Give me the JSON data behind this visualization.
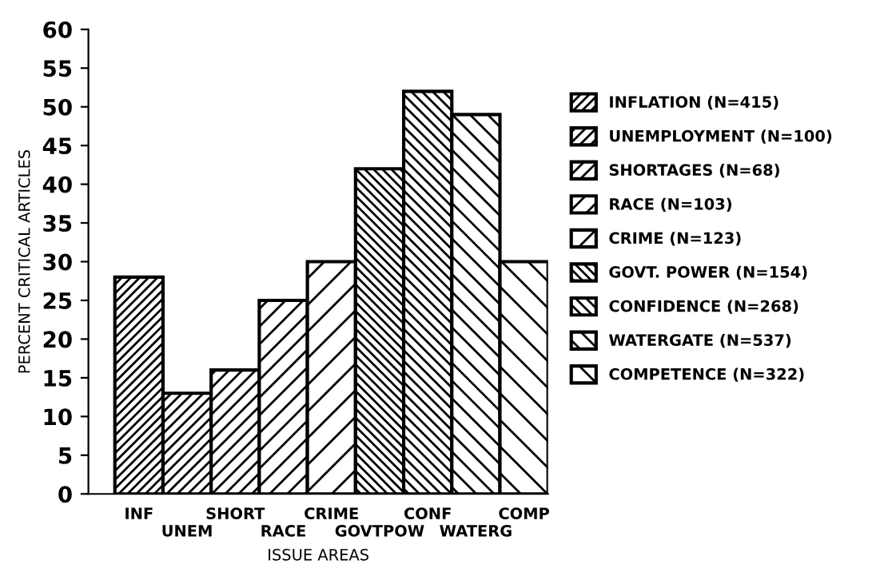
{
  "chart_data": {
    "type": "bar",
    "xlabel": "ISSUE AREAS",
    "ylabel": "PERCENT CRITICAL ARTICLES",
    "categories": [
      "INF",
      "UNEM",
      "SHORT",
      "RACE",
      "CRIME",
      "GOVTPOW",
      "CONF",
      "WATERG",
      "COMP"
    ],
    "series": [
      {
        "name": "INFLATION (N=415)",
        "color": "#000000",
        "values": [
          28,
          null,
          null,
          null,
          null,
          null,
          null,
          null,
          null
        ]
      },
      {
        "name": "UNEMPLOYMENT (N=100)",
        "color": "#000000",
        "values": [
          null,
          13,
          null,
          null,
          null,
          null,
          null,
          null,
          null
        ]
      },
      {
        "name": "SHORTAGES (N=68)",
        "color": "#000000",
        "values": [
          null,
          null,
          16,
          null,
          null,
          null,
          null,
          null,
          null
        ]
      },
      {
        "name": "RACE (N=103)",
        "color": "#000000",
        "values": [
          null,
          null,
          null,
          25,
          null,
          null,
          null,
          null,
          null
        ]
      },
      {
        "name": "CRIME (N=123)",
        "color": "#000000",
        "values": [
          null,
          null,
          null,
          null,
          30,
          null,
          null,
          null,
          null
        ]
      },
      {
        "name": "GOVT. POWER (N=154)",
        "color": "#000000",
        "values": [
          null,
          null,
          null,
          null,
          null,
          42,
          null,
          null,
          null
        ]
      },
      {
        "name": "CONFIDENCE (N=268)",
        "color": "#000000",
        "values": [
          null,
          null,
          null,
          null,
          null,
          null,
          52,
          null,
          null
        ]
      },
      {
        "name": "WATERGATE (N=537)",
        "color": "#000000",
        "values": [
          null,
          null,
          null,
          null,
          null,
          null,
          null,
          49,
          null
        ]
      },
      {
        "name": "COMPETENCE (N=322)",
        "color": "#000000",
        "values": [
          null,
          null,
          null,
          null,
          null,
          null,
          null,
          null,
          30
        ]
      }
    ],
    "ylim": [
      0,
      60
    ],
    "yticks": [
      0,
      5,
      10,
      15,
      20,
      25,
      30,
      35,
      40,
      45,
      50,
      55,
      60
    ],
    "grid": false,
    "legend": "right"
  }
}
